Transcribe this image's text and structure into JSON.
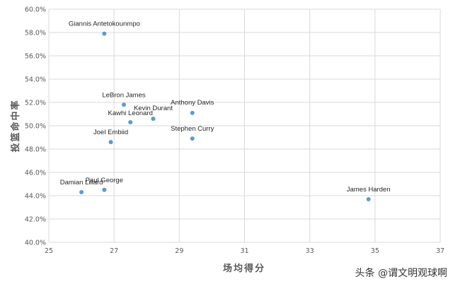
{
  "chart_data": {
    "type": "scatter",
    "xlabel": "场均得分",
    "ylabel": "投篮命中率",
    "xlim": [
      25,
      37
    ],
    "ylim": [
      0.4,
      0.6
    ],
    "xticks": [
      "25",
      "27",
      "29",
      "31",
      "33",
      "35",
      "37"
    ],
    "yticks": [
      "40.0%",
      "42.0%",
      "44.0%",
      "46.0%",
      "48.0%",
      "50.0%",
      "52.0%",
      "54.0%",
      "56.0%",
      "58.0%",
      "60.0%"
    ],
    "grid": true,
    "marker_color": "#5b9bd5",
    "points": [
      {
        "label": "Giannis Antetokounmpo",
        "x": 26.7,
        "y": 0.579
      },
      {
        "label": "LeBron James",
        "x": 27.3,
        "y": 0.518
      },
      {
        "label": "Anthony Davis",
        "x": 29.4,
        "y": 0.511
      },
      {
        "label": "Kevin Durant",
        "x": 28.2,
        "y": 0.506
      },
      {
        "label": "Kawhi Leonard",
        "x": 27.5,
        "y": 0.503
      },
      {
        "label": "Stephen Curry",
        "x": 29.4,
        "y": 0.489
      },
      {
        "label": "Joel Embiid",
        "x": 26.9,
        "y": 0.486
      },
      {
        "label": "Paul George",
        "x": 26.7,
        "y": 0.445
      },
      {
        "label": "Damian Lillard",
        "x": 26.0,
        "y": 0.443
      },
      {
        "label": "James Harden",
        "x": 34.8,
        "y": 0.437
      }
    ]
  },
  "watermark": "头条 @谓文明观球啊"
}
